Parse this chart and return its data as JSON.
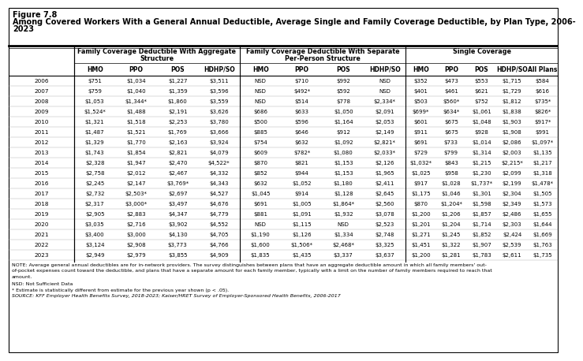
{
  "title_line1": "Figure 7.8",
  "title_line2": "Among Covered Workers With a General Annual Deductible, Average Single and Family Coverage Deductible, by Plan Type, 2006-\n2023",
  "col_headers": [
    "HMO",
    "PPO",
    "POS",
    "HDHP/SO",
    "HMO",
    "PPO",
    "POS",
    "HDHP/SO",
    "HMO",
    "PPO",
    "POS",
    "HDHP/SO",
    "All Plans"
  ],
  "years": [
    "2006",
    "2007",
    "2008",
    "2009",
    "2010",
    "2011",
    "2012",
    "2013",
    "2014",
    "2015",
    "2016",
    "2017",
    "2018",
    "2019",
    "2020",
    "2021",
    "2022",
    "2023"
  ],
  "data": [
    [
      "$751",
      "$1,034",
      "$1,227",
      "$3,511",
      "NSD",
      "$710",
      "$992",
      "NSD",
      "$352",
      "$473",
      "$553",
      "$1,715",
      "$584"
    ],
    [
      "$759",
      "$1,040",
      "$1,359",
      "$3,596",
      "NSD",
      "$492*",
      "$592",
      "NSD",
      "$401",
      "$461",
      "$621",
      "$1,729",
      "$616"
    ],
    [
      "$1,053",
      "$1,344*",
      "$1,860",
      "$3,559",
      "NSD",
      "$514",
      "$778",
      "$2,334*",
      "$503",
      "$560*",
      "$752",
      "$1,812",
      "$735*"
    ],
    [
      "$1,524*",
      "$1,488",
      "$2,191",
      "$3,626",
      "$686",
      "$633",
      "$1,050",
      "$2,091",
      "$699*",
      "$634*",
      "$1,061",
      "$1,838",
      "$826*"
    ],
    [
      "$1,321",
      "$1,518",
      "$2,253",
      "$3,780",
      "$500",
      "$596",
      "$1,164",
      "$2,053",
      "$601",
      "$675",
      "$1,048",
      "$1,903",
      "$917*"
    ],
    [
      "$1,487",
      "$1,521",
      "$1,769",
      "$3,666",
      "$885",
      "$646",
      "$912",
      "$2,149",
      "$911",
      "$675",
      "$928",
      "$1,908",
      "$991"
    ],
    [
      "$1,329",
      "$1,770",
      "$2,163",
      "$3,924",
      "$754",
      "$632",
      "$1,092",
      "$2,821*",
      "$691",
      "$733",
      "$1,014",
      "$2,086",
      "$1,097*"
    ],
    [
      "$1,743",
      "$1,854",
      "$2,821",
      "$4,079",
      "$609",
      "$782*",
      "$1,080",
      "$2,033*",
      "$729",
      "$799",
      "$1,314",
      "$2,003",
      "$1,135"
    ],
    [
      "$2,328",
      "$1,947",
      "$2,470",
      "$4,522*",
      "$870",
      "$821",
      "$1,153",
      "$2,126",
      "$1,032*",
      "$843",
      "$1,215",
      "$2,215*",
      "$1,217"
    ],
    [
      "$2,758",
      "$2,012",
      "$2,467",
      "$4,332",
      "$852",
      "$944",
      "$1,153",
      "$1,965",
      "$1,025",
      "$958",
      "$1,230",
      "$2,099",
      "$1,318"
    ],
    [
      "$2,245",
      "$2,147",
      "$3,769*",
      "$4,343",
      "$632",
      "$1,052",
      "$1,180",
      "$2,411",
      "$917",
      "$1,028",
      "$1,737*",
      "$2,199",
      "$1,478*"
    ],
    [
      "$2,732",
      "$2,503*",
      "$2,697",
      "$4,527",
      "$1,045",
      "$914",
      "$1,128",
      "$2,645",
      "$1,175",
      "$1,046",
      "$1,301",
      "$2,304",
      "$1,505"
    ],
    [
      "$2,317",
      "$3,000*",
      "$3,497",
      "$4,676",
      "$691",
      "$1,005",
      "$1,864*",
      "$2,560",
      "$870",
      "$1,204*",
      "$1,598",
      "$2,349",
      "$1,573"
    ],
    [
      "$2,905",
      "$2,883",
      "$4,347",
      "$4,779",
      "$881",
      "$1,091",
      "$1,932",
      "$3,078",
      "$1,200",
      "$1,206",
      "$1,857",
      "$2,486",
      "$1,655"
    ],
    [
      "$3,035",
      "$2,716",
      "$3,902",
      "$4,552",
      "NSD",
      "$1,115",
      "NSD",
      "$2,523",
      "$1,201",
      "$1,204",
      "$1,714",
      "$2,303",
      "$1,644"
    ],
    [
      "$3,400",
      "$3,000",
      "$4,130",
      "$4,705",
      "$1,190",
      "$1,126",
      "$1,334",
      "$2,748",
      "$1,271",
      "$1,245",
      "$1,852",
      "$2,424",
      "$1,669"
    ],
    [
      "$3,124",
      "$2,908",
      "$3,773",
      "$4,766",
      "$1,600",
      "$1,506*",
      "$2,468*",
      "$3,325",
      "$1,451",
      "$1,322",
      "$1,907",
      "$2,539",
      "$1,763"
    ],
    [
      "$2,949",
      "$2,979",
      "$3,855",
      "$4,909",
      "$1,835",
      "$1,435",
      "$3,337",
      "$3,637",
      "$1,200",
      "$1,281",
      "$1,783",
      "$2,611",
      "$1,735"
    ]
  ],
  "note_line1": "NOTE: Average general annual deductibles are for in-network providers. The survey distinguishes between plans that have an aggregate deductible amount in which all family members' out-",
  "note_line2": "of-pocket expenses count toward the deductible, and plans that have a separate amount for each family member, typically with a limit on the number of family members required to reach that",
  "note_line3": "amount.",
  "nsd_text": "NSD: Not Sufficient Data",
  "asterisk_text": "* Estimate is statistically different from estimate for the previous year shown (p < .05).",
  "source_text": "SOURCE: KFF Employer Health Benefits Survey, 2018-2023; Kaiser/HRET Survey of Employer-Sponsored Health Benefits, 2006-2017"
}
